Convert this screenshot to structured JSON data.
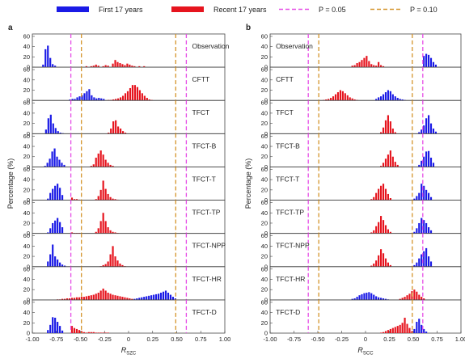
{
  "legend": {
    "first": "First 17 years",
    "recent": "Recent 17 years",
    "p05": "P = 0.05",
    "p10": "P = 0.10"
  },
  "colors": {
    "first": "#1a1ae6",
    "recent": "#e6141e",
    "p05": "#e64de6",
    "p10": "#d4942a"
  },
  "chart_data": [
    {
      "type": "bar",
      "panel_letter": "a",
      "xlabel": "R",
      "xlabel_sub": "SZC",
      "ylabel": "Percentage (%)",
      "xlim": [
        -1.0,
        1.0
      ],
      "xticks": [
        "-1.00",
        "-0.75",
        "-0.50",
        "-0.25",
        "0",
        "0.25",
        "0.50",
        "0.75",
        "1.00"
      ],
      "ylim": [
        0,
        60
      ],
      "yticks": [
        "0",
        "20",
        "40",
        "60"
      ],
      "bin_width": 0.025,
      "p05_lines": [
        -0.6,
        0.6
      ],
      "p10_lines": [
        -0.49,
        0.49
      ],
      "panels": [
        {
          "label": "Observation",
          "first": {
            "start": -0.9,
            "values": [
              5,
              35,
              42,
              18,
              6,
              3
            ]
          },
          "recent": {
            "start": -0.45,
            "values": [
              2,
              0,
              2,
              3,
              5,
              3,
              0,
              2,
              4,
              3,
              0,
              7,
              14,
              10,
              8,
              6,
              4,
              7,
              5,
              3,
              2,
              0,
              2,
              0,
              2
            ]
          }
        },
        {
          "label": "CFTT",
          "first": {
            "start": -0.62,
            "values": [
              2,
              3,
              3,
              6,
              8,
              10,
              14,
              18,
              22,
              10,
              6,
              4,
              5,
              4,
              3
            ]
          },
          "recent": {
            "start": -0.22,
            "values": [
              1,
              1,
              2,
              3,
              4,
              6,
              9,
              14,
              18,
              24,
              30,
              30,
              26,
              20,
              14,
              9,
              5,
              2,
              1
            ]
          }
        },
        {
          "label": "TFCT",
          "first": {
            "start": -0.87,
            "values": [
              8,
              30,
              37,
              20,
              11,
              5,
              2,
              1
            ]
          },
          "recent": {
            "start": -0.22,
            "values": [
              2,
              10,
              24,
              26,
              14,
              10,
              5,
              2
            ]
          }
        },
        {
          "label": "TFCT-B",
          "first": {
            "start": -0.88,
            "values": [
              2,
              8,
              16,
              30,
              36,
              20,
              14,
              8,
              4
            ]
          },
          "recent": {
            "start": -0.4,
            "values": [
              2,
              5,
              18,
              26,
              32,
              24,
              14,
              8,
              4,
              2
            ]
          }
        },
        {
          "label": "TFCT-T",
          "first": {
            "start": -0.85,
            "values": [
              3,
              14,
              22,
              28,
              32,
              24,
              10
            ]
          },
          "recent": {
            "start": -0.6,
            "values": [
              5,
              2,
              2,
              1,
              0,
              0,
              0,
              0,
              0,
              0,
              2,
              8,
              20,
              38,
              22,
              12,
              6,
              3,
              2,
              1
            ]
          }
        },
        {
          "label": "TFCT-TP",
          "first": {
            "start": -0.85,
            "values": [
              2,
              10,
              20,
              25,
              30,
              22,
              12
            ]
          },
          "recent": {
            "start": -0.6,
            "values": [
              2,
              1,
              1,
              1,
              0,
              0,
              0,
              0,
              0,
              0,
              3,
              10,
              24,
              40,
              24,
              12,
              6,
              3,
              2,
              1
            ]
          }
        },
        {
          "label": "TFCT-NPP",
          "first": {
            "start": -0.85,
            "values": [
              10,
              24,
              43,
              20,
              14,
              8,
              4,
              2
            ]
          },
          "recent": {
            "start": -0.3,
            "values": [
              1,
              3,
              5,
              10,
              24,
              40,
              20,
              12,
              6,
              3,
              1
            ]
          }
        },
        {
          "label": "TFCT-HR",
          "first": {
            "start": 0.05,
            "values": [
              2,
              3,
              4,
              5,
              6,
              7,
              8,
              9,
              10,
              11,
              12,
              14,
              16,
              18,
              14,
              10,
              6,
              3
            ]
          },
          "recent": {
            "start": -0.75,
            "values": [
              1,
              1,
              2,
              2,
              3,
              3,
              4,
              4,
              5,
              5,
              6,
              6,
              7,
              8,
              9,
              10,
              12,
              14,
              18,
              22,
              18,
              14,
              12,
              10,
              9,
              8,
              7,
              6,
              5,
              4,
              3,
              2
            ]
          }
        },
        {
          "label": "TFCT-D",
          "first": {
            "start": -0.85,
            "values": [
              6,
              16,
              31,
              30,
              22,
              14,
              5
            ]
          },
          "recent": {
            "start": -0.6,
            "values": [
              14,
              10,
              8,
              6,
              4,
              2,
              1,
              2,
              2,
              2,
              1,
              1,
              1,
              1,
              1,
              1
            ]
          }
        }
      ]
    },
    {
      "type": "bar",
      "panel_letter": "b",
      "xlabel": "R",
      "xlabel_sub": "SCC",
      "ylabel": "Percentage (%)",
      "xlim": [
        -1.0,
        1.0
      ],
      "xticks": [
        "-1.00",
        "-0.75",
        "-0.50",
        "-0.25",
        "0",
        "0.25",
        "0.50",
        "0.75",
        "1.00"
      ],
      "ylim": [
        0,
        60
      ],
      "yticks": [
        "0",
        "20",
        "40",
        "60"
      ],
      "bin_width": 0.025,
      "p05_lines": [
        -0.6,
        0.6
      ],
      "p10_lines": [
        -0.49,
        0.49
      ],
      "panels": [
        {
          "label": "Observation",
          "first": {
            "start": 0.6,
            "values": [
              22,
              26,
              24,
              18,
              10,
              5
            ]
          },
          "recent": {
            "start": -0.15,
            "values": [
              3,
              4,
              8,
              10,
              14,
              18,
              22,
              12,
              6,
              4,
              3,
              10,
              4,
              2
            ]
          }
        },
        {
          "label": "CFTT",
          "first": {
            "start": 0.1,
            "values": [
              3,
              6,
              8,
              12,
              16,
              20,
              18,
              12,
              8,
              5,
              3,
              2,
              1
            ]
          },
          "recent": {
            "start": -0.45,
            "values": [
              1,
              2,
              3,
              5,
              8,
              12,
              16,
              20,
              18,
              14,
              10,
              6,
              4,
              2,
              1
            ]
          }
        },
        {
          "label": "TFCT",
          "first": {
            "start": 0.55,
            "values": [
              3,
              8,
              16,
              30,
              36,
              20,
              10,
              4
            ]
          },
          "recent": {
            "start": 0.15,
            "values": [
              3,
              12,
              26,
              36,
              24,
              10,
              3
            ]
          }
        },
        {
          "label": "TFCT-B",
          "first": {
            "start": 0.55,
            "values": [
              4,
              12,
              20,
              30,
              31,
              18,
              8
            ]
          },
          "recent": {
            "start": 0.15,
            "values": [
              2,
              8,
              16,
              24,
              32,
              20,
              10,
              4
            ]
          }
        },
        {
          "label": "TFCT-T",
          "first": {
            "start": 0.5,
            "values": [
              3,
              8,
              14,
              32,
              28,
              20,
              14,
              6
            ]
          },
          "recent": {
            "start": 0.05,
            "values": [
              2,
              6,
              14,
              22,
              28,
              32,
              22,
              12,
              4
            ]
          }
        },
        {
          "label": "TFCT-TP",
          "first": {
            "start": 0.5,
            "values": [
              3,
              10,
              20,
              30,
              26,
              20,
              12,
              6
            ]
          },
          "recent": {
            "start": 0.05,
            "values": [
              2,
              6,
              14,
              22,
              34,
              26,
              16,
              8,
              3
            ]
          }
        },
        {
          "label": "TFCT-NPP",
          "first": {
            "start": 0.5,
            "values": [
              3,
              8,
              16,
              24,
              30,
              36,
              20,
              10
            ]
          },
          "recent": {
            "start": 0.05,
            "values": [
              2,
              6,
              12,
              22,
              34,
              26,
              16,
              8,
              3
            ]
          }
        },
        {
          "label": "TFCT-HR",
          "first": {
            "start": -0.15,
            "values": [
              2,
              3,
              6,
              9,
              11,
              13,
              14,
              15,
              13,
              10,
              7,
              5,
              4,
              3,
              2,
              1
            ]
          },
          "recent": {
            "start": 0.35,
            "values": [
              2,
              4,
              6,
              9,
              12,
              17,
              20,
              16,
              10,
              6,
              3
            ]
          }
        },
        {
          "label": "TFCT-D",
          "first": {
            "start": 0.5,
            "values": [
              8,
              22,
              28,
              16,
              8,
              3
            ]
          },
          "recent": {
            "start": 0.15,
            "values": [
              1,
              2,
              4,
              6,
              8,
              10,
              12,
              14,
              16,
              20,
              30,
              18,
              10,
              4,
              2
            ]
          }
        }
      ]
    }
  ]
}
